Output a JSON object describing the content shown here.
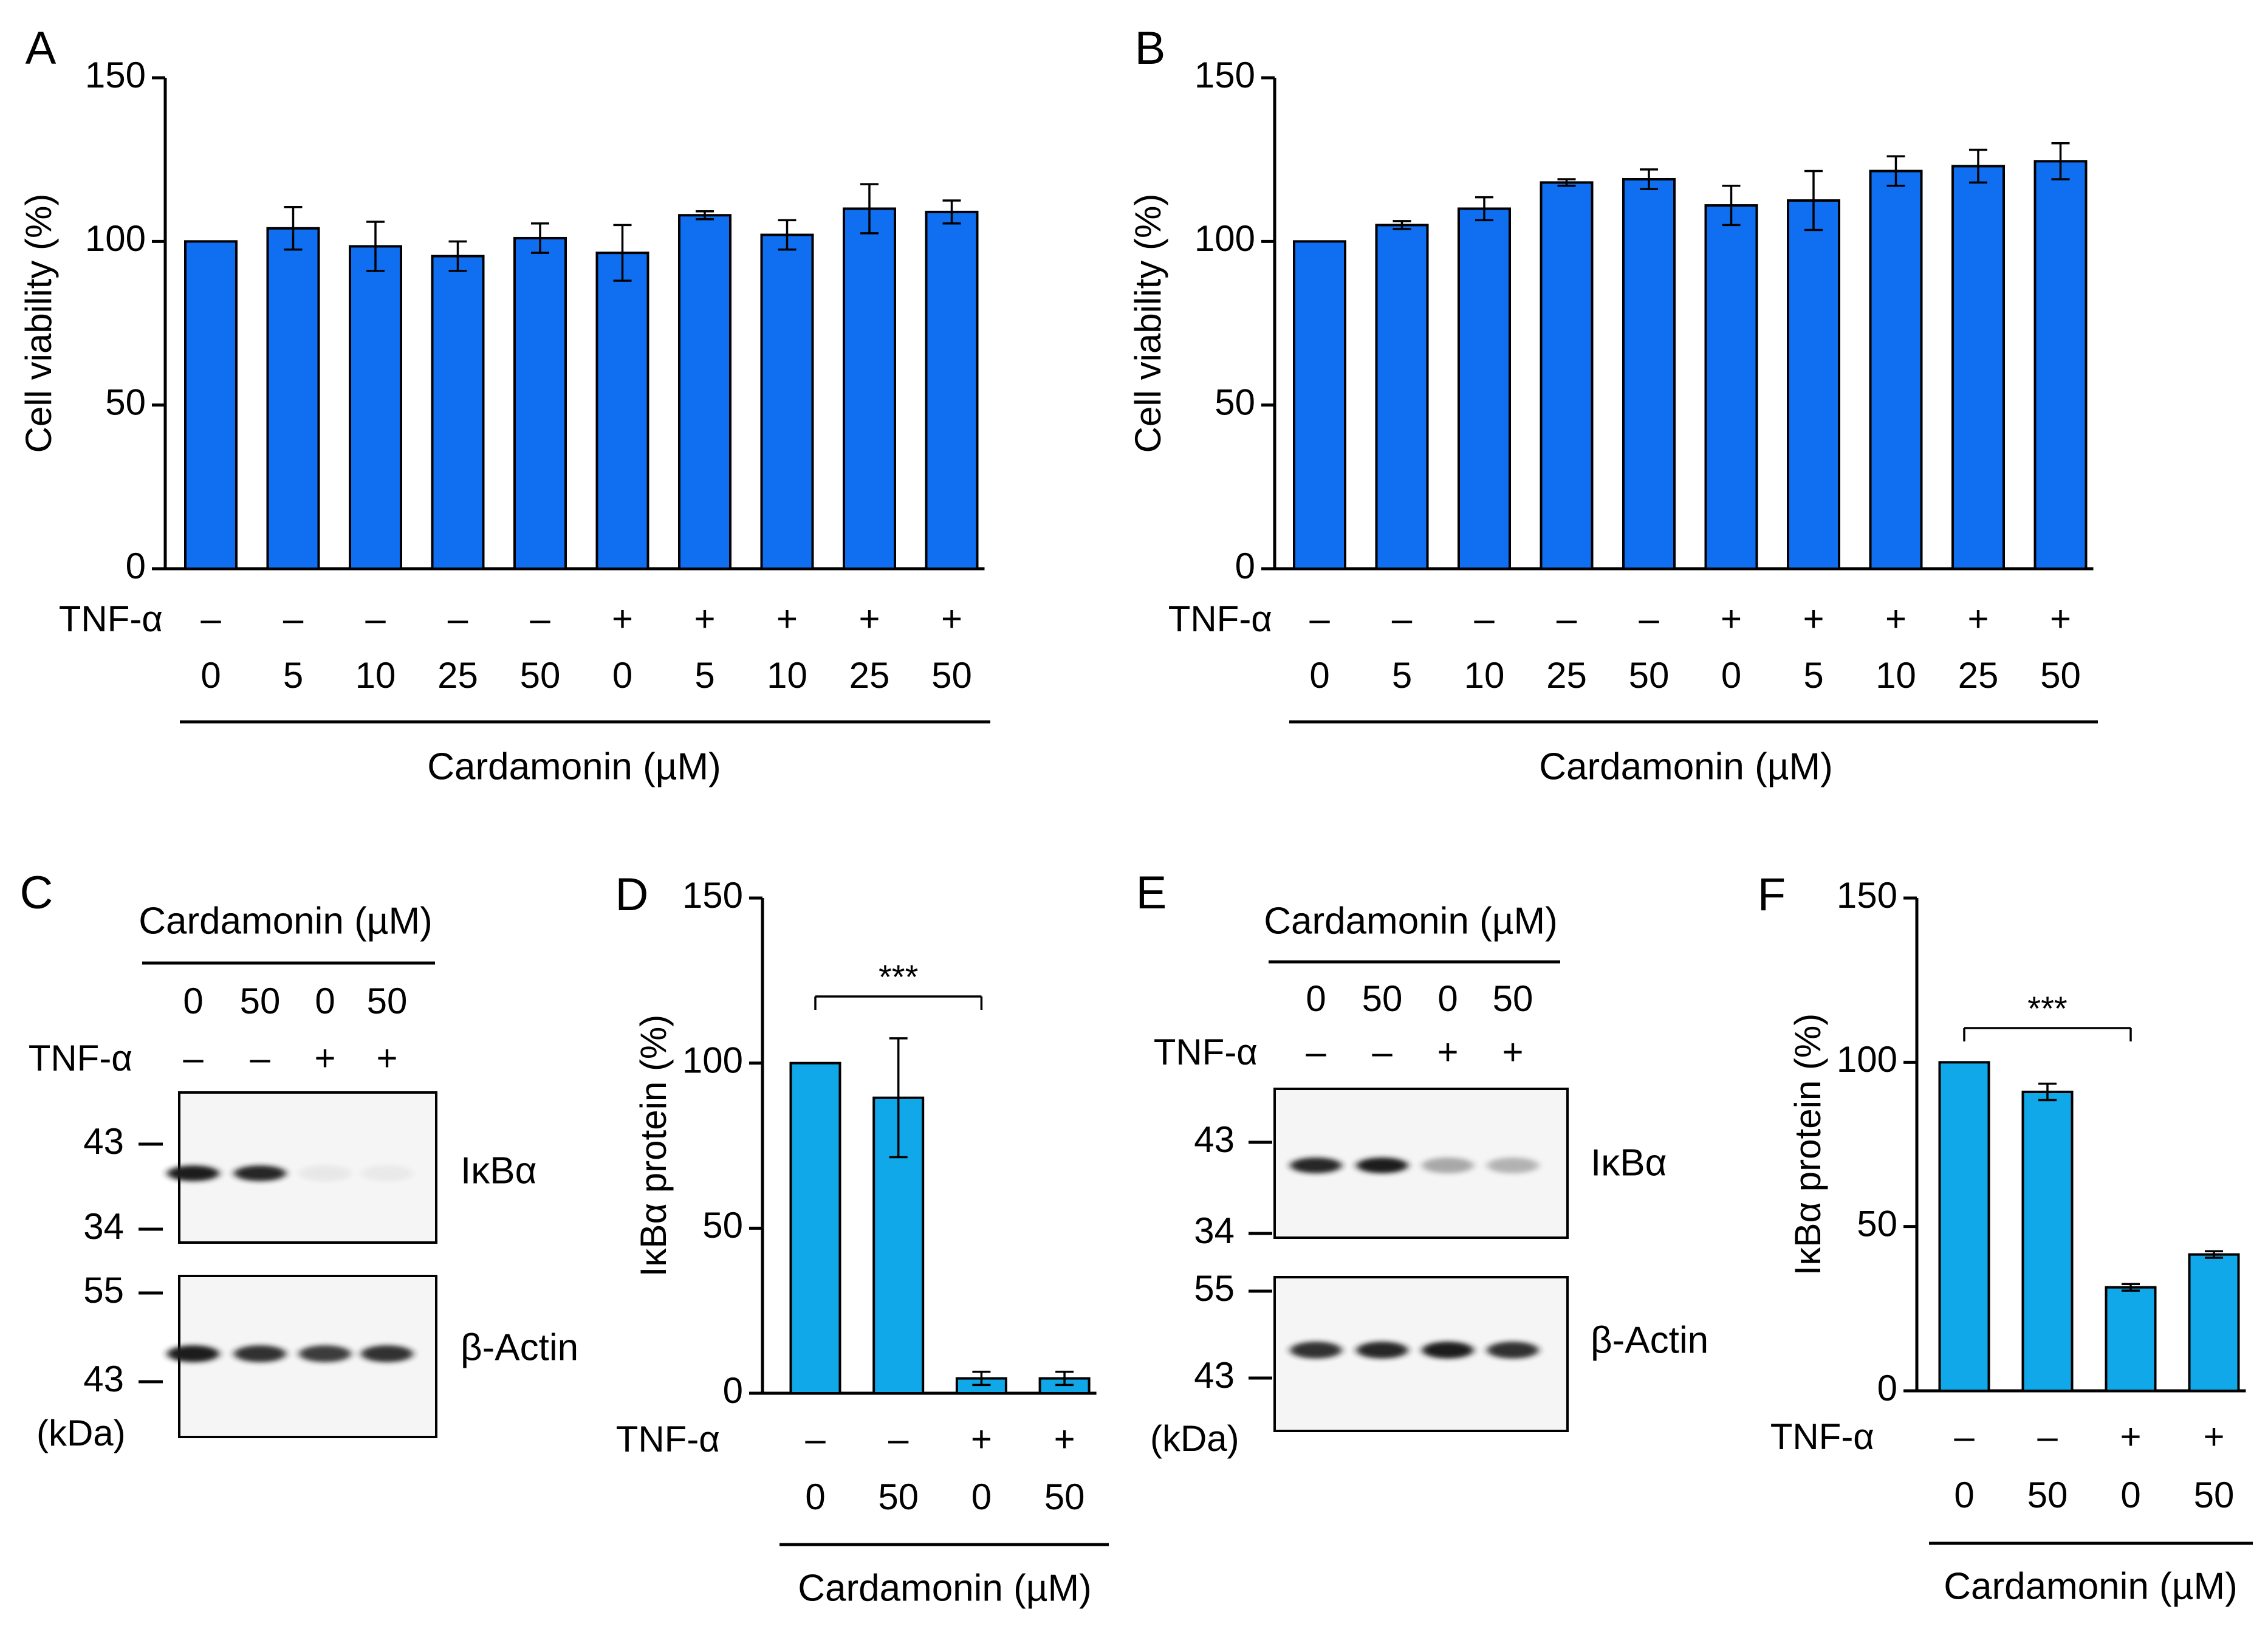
{
  "colors": {
    "bar_ab": "#0f6ff0",
    "bar_df": "#10a8e8",
    "axis": "#000000",
    "blot_bg": "#f5f5f5",
    "band": "#1a1a1a"
  },
  "chart_data": [
    {
      "id": "A",
      "type": "bar",
      "panel_label": "A",
      "title": "",
      "ylabel": "Cell viability (%)",
      "xlabel": "Cardamonin (µM)",
      "ylim": [
        0,
        150
      ],
      "yticks": [
        0,
        50,
        100,
        150
      ],
      "tnf_label": "TNF-α",
      "tnf": [
        "–",
        "–",
        "–",
        "–",
        "–",
        "+",
        "+",
        "+",
        "+",
        "+"
      ],
      "categories": [
        "0",
        "5",
        "10",
        "25",
        "50",
        "0",
        "5",
        "10",
        "25",
        "50"
      ],
      "values": [
        100,
        104,
        98.5,
        95.5,
        101,
        96.5,
        108,
        102,
        110,
        109
      ],
      "errors": [
        0,
        6.5,
        7.5,
        4.5,
        4.5,
        8.5,
        1.2,
        4.5,
        7.5,
        3.5
      ]
    },
    {
      "id": "B",
      "type": "bar",
      "panel_label": "B",
      "title": "",
      "ylabel": "Cell viability (%)",
      "xlabel": "Cardamonin (µM)",
      "ylim": [
        0,
        150
      ],
      "yticks": [
        0,
        50,
        100,
        150
      ],
      "tnf_label": "TNF-α",
      "tnf": [
        "–",
        "–",
        "–",
        "–",
        "–",
        "+",
        "+",
        "+",
        "+",
        "+"
      ],
      "categories": [
        "0",
        "5",
        "10",
        "25",
        "50",
        "0",
        "5",
        "10",
        "25",
        "50"
      ],
      "values": [
        100,
        105,
        110,
        118,
        119,
        111,
        112.5,
        121.5,
        123,
        124.5
      ],
      "errors": [
        0,
        1.2,
        3.5,
        1,
        3,
        6,
        9,
        4.5,
        5,
        5.5
      ]
    },
    {
      "id": "D",
      "type": "bar",
      "panel_label": "D",
      "title": "",
      "ylabel": "IκBα protein (%)",
      "xlabel": "Cardamonin (µM)",
      "ylim": [
        0,
        150
      ],
      "yticks": [
        0,
        50,
        100,
        150
      ],
      "tnf_label": "TNF-α",
      "tnf": [
        "–",
        "–",
        "+",
        "+"
      ],
      "categories": [
        "0",
        "50",
        "0",
        "50"
      ],
      "values": [
        100,
        89.5,
        4.5,
        4.5
      ],
      "errors": [
        0,
        18,
        2,
        2
      ],
      "annotation": {
        "text": "***",
        "from": 0,
        "to": 2
      }
    },
    {
      "id": "F",
      "type": "bar",
      "panel_label": "F",
      "title": "",
      "ylabel": "IκBα protein (%)",
      "xlabel": "Cardamonin (µM)",
      "ylim": [
        0,
        150
      ],
      "yticks": [
        0,
        50,
        100,
        150
      ],
      "tnf_label": "TNF-α",
      "tnf": [
        "–",
        "–",
        "+",
        "+"
      ],
      "categories": [
        "0",
        "50",
        "0",
        "50"
      ],
      "values": [
        100,
        91,
        31.5,
        41.5
      ],
      "errors": [
        0,
        2.5,
        1,
        1
      ],
      "annotation": {
        "text": "***",
        "from": 0,
        "to": 2
      }
    }
  ],
  "blots": [
    {
      "id": "C",
      "panel_label": "C",
      "header": "Cardamonin (µM)",
      "doses": [
        "0",
        "50",
        "0",
        "50"
      ],
      "tnf_label": "TNF-α",
      "tnf": [
        "–",
        "–",
        "+",
        "+"
      ],
      "top_label": "IκBα",
      "bottom_label": "β-Actin",
      "top_markers": [
        "43",
        "34"
      ],
      "bottom_markers": [
        "55",
        "43"
      ],
      "unit": "(kDa)",
      "ikba_intensity": [
        1.0,
        0.95,
        0.06,
        0.05
      ],
      "actin_intensity": [
        1.0,
        0.9,
        0.85,
        0.9
      ]
    },
    {
      "id": "E",
      "panel_label": "E",
      "header": "Cardamonin (µM)",
      "doses": [
        "0",
        "50",
        "0",
        "50"
      ],
      "tnf_label": "TNF-α",
      "tnf": [
        "–",
        "–",
        "+",
        "+"
      ],
      "top_label": "IκBα",
      "bottom_label": "β-Actin",
      "top_markers": [
        "43",
        "34"
      ],
      "bottom_markers": [
        "55",
        "43"
      ],
      "unit": "(kDa)",
      "ikba_intensity": [
        0.95,
        1.0,
        0.35,
        0.3
      ],
      "actin_intensity": [
        0.9,
        0.95,
        1.0,
        0.9
      ]
    }
  ]
}
